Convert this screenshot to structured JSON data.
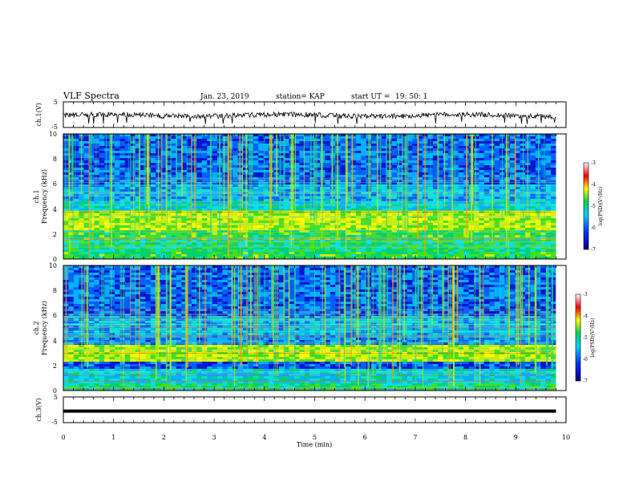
{
  "header": {
    "title": "VLF Spectra",
    "date": "Jan. 23, 2019",
    "station": "station= KAP",
    "start_label": "start  UT =",
    "start_time": "19: 50: 1"
  },
  "chart_data": [
    {
      "type": "line",
      "id": "ch1-waveform",
      "ylabel": "ch.1(V)",
      "ylim": [
        -5,
        5
      ],
      "yticks": [
        "5",
        "-5"
      ],
      "xlim": [
        0,
        10
      ],
      "x_extent": 9.8,
      "note_values": "noisy waveform oscillating roughly between -2.5 and 1.5 V",
      "level": -0.3,
      "amplitude": 1.0
    },
    {
      "type": "heatmap",
      "id": "ch1-spectrogram",
      "ylabel_line1": "ch.1",
      "ylabel_line2": "Frequency  (kHz)",
      "ylim": [
        0,
        10
      ],
      "yticks": [
        "0",
        "2",
        "4",
        "6",
        "8",
        "10"
      ],
      "xlim": [
        0,
        10
      ],
      "x_extent": 9.8,
      "bands_khz": [
        {
          "from": 0,
          "to": 0.6,
          "level": 0.55
        },
        {
          "from": 0.6,
          "to": 1.6,
          "level": 0.5
        },
        {
          "from": 1.6,
          "to": 2.3,
          "level": 0.55
        },
        {
          "from": 2.3,
          "to": 3.8,
          "level": 0.68
        },
        {
          "from": 3.8,
          "to": 4.6,
          "level": 0.4
        },
        {
          "from": 4.6,
          "to": 6.0,
          "level": 0.32
        },
        {
          "from": 6.0,
          "to": 10,
          "level": 0.24
        }
      ],
      "colorbar": {
        "label": "log(PSD)(V²/Hz)",
        "ticks": [
          "-3",
          "-4",
          "-5",
          "-6",
          "-7"
        ],
        "range": [
          -7,
          -3
        ]
      }
    },
    {
      "type": "heatmap",
      "id": "ch2-spectrogram",
      "ylabel_line1": "ch.2",
      "ylabel_line2": "Frequency  (kHz)",
      "ylim": [
        0,
        10
      ],
      "yticks": [
        "0",
        "2",
        "4",
        "6",
        "8",
        "10"
      ],
      "xlim": [
        0,
        10
      ],
      "x_extent": 9.8,
      "bands_khz": [
        {
          "from": 0,
          "to": 0.6,
          "level": 0.5
        },
        {
          "from": 0.6,
          "to": 1.8,
          "level": 0.4
        },
        {
          "from": 1.8,
          "to": 2.4,
          "level": 0.2
        },
        {
          "from": 2.4,
          "to": 3.6,
          "level": 0.66
        },
        {
          "from": 3.6,
          "to": 4.2,
          "level": 0.28
        },
        {
          "from": 4.2,
          "to": 6.0,
          "level": 0.34
        },
        {
          "from": 6.0,
          "to": 10,
          "level": 0.24
        }
      ],
      "colorbar": {
        "label": "log(PSD)(V²/Hz)",
        "ticks": [
          "-3",
          "-4",
          "-5",
          "-6",
          "-7"
        ],
        "range": [
          -7,
          -3
        ]
      }
    },
    {
      "type": "line",
      "id": "ch3-waveform",
      "ylabel": "ch.3(V)",
      "ylim": [
        -5,
        5
      ],
      "yticks": [
        "5",
        "-5"
      ],
      "xlim": [
        0,
        10
      ],
      "x_extent": 9.8,
      "level": -0.5,
      "amplitude": 0.0
    }
  ],
  "xaxis": {
    "label": "Time  (min)",
    "ticks": [
      "0",
      "1",
      "2",
      "3",
      "4",
      "5",
      "6",
      "7",
      "8",
      "9",
      "10"
    ]
  },
  "colors": {
    "dark_blue": "#00008b",
    "blue": "#0020ff",
    "cyan": "#00c8ff",
    "green": "#00d050",
    "yellow": "#ffff00",
    "red": "#ff0000",
    "white": "#ffffff"
  }
}
